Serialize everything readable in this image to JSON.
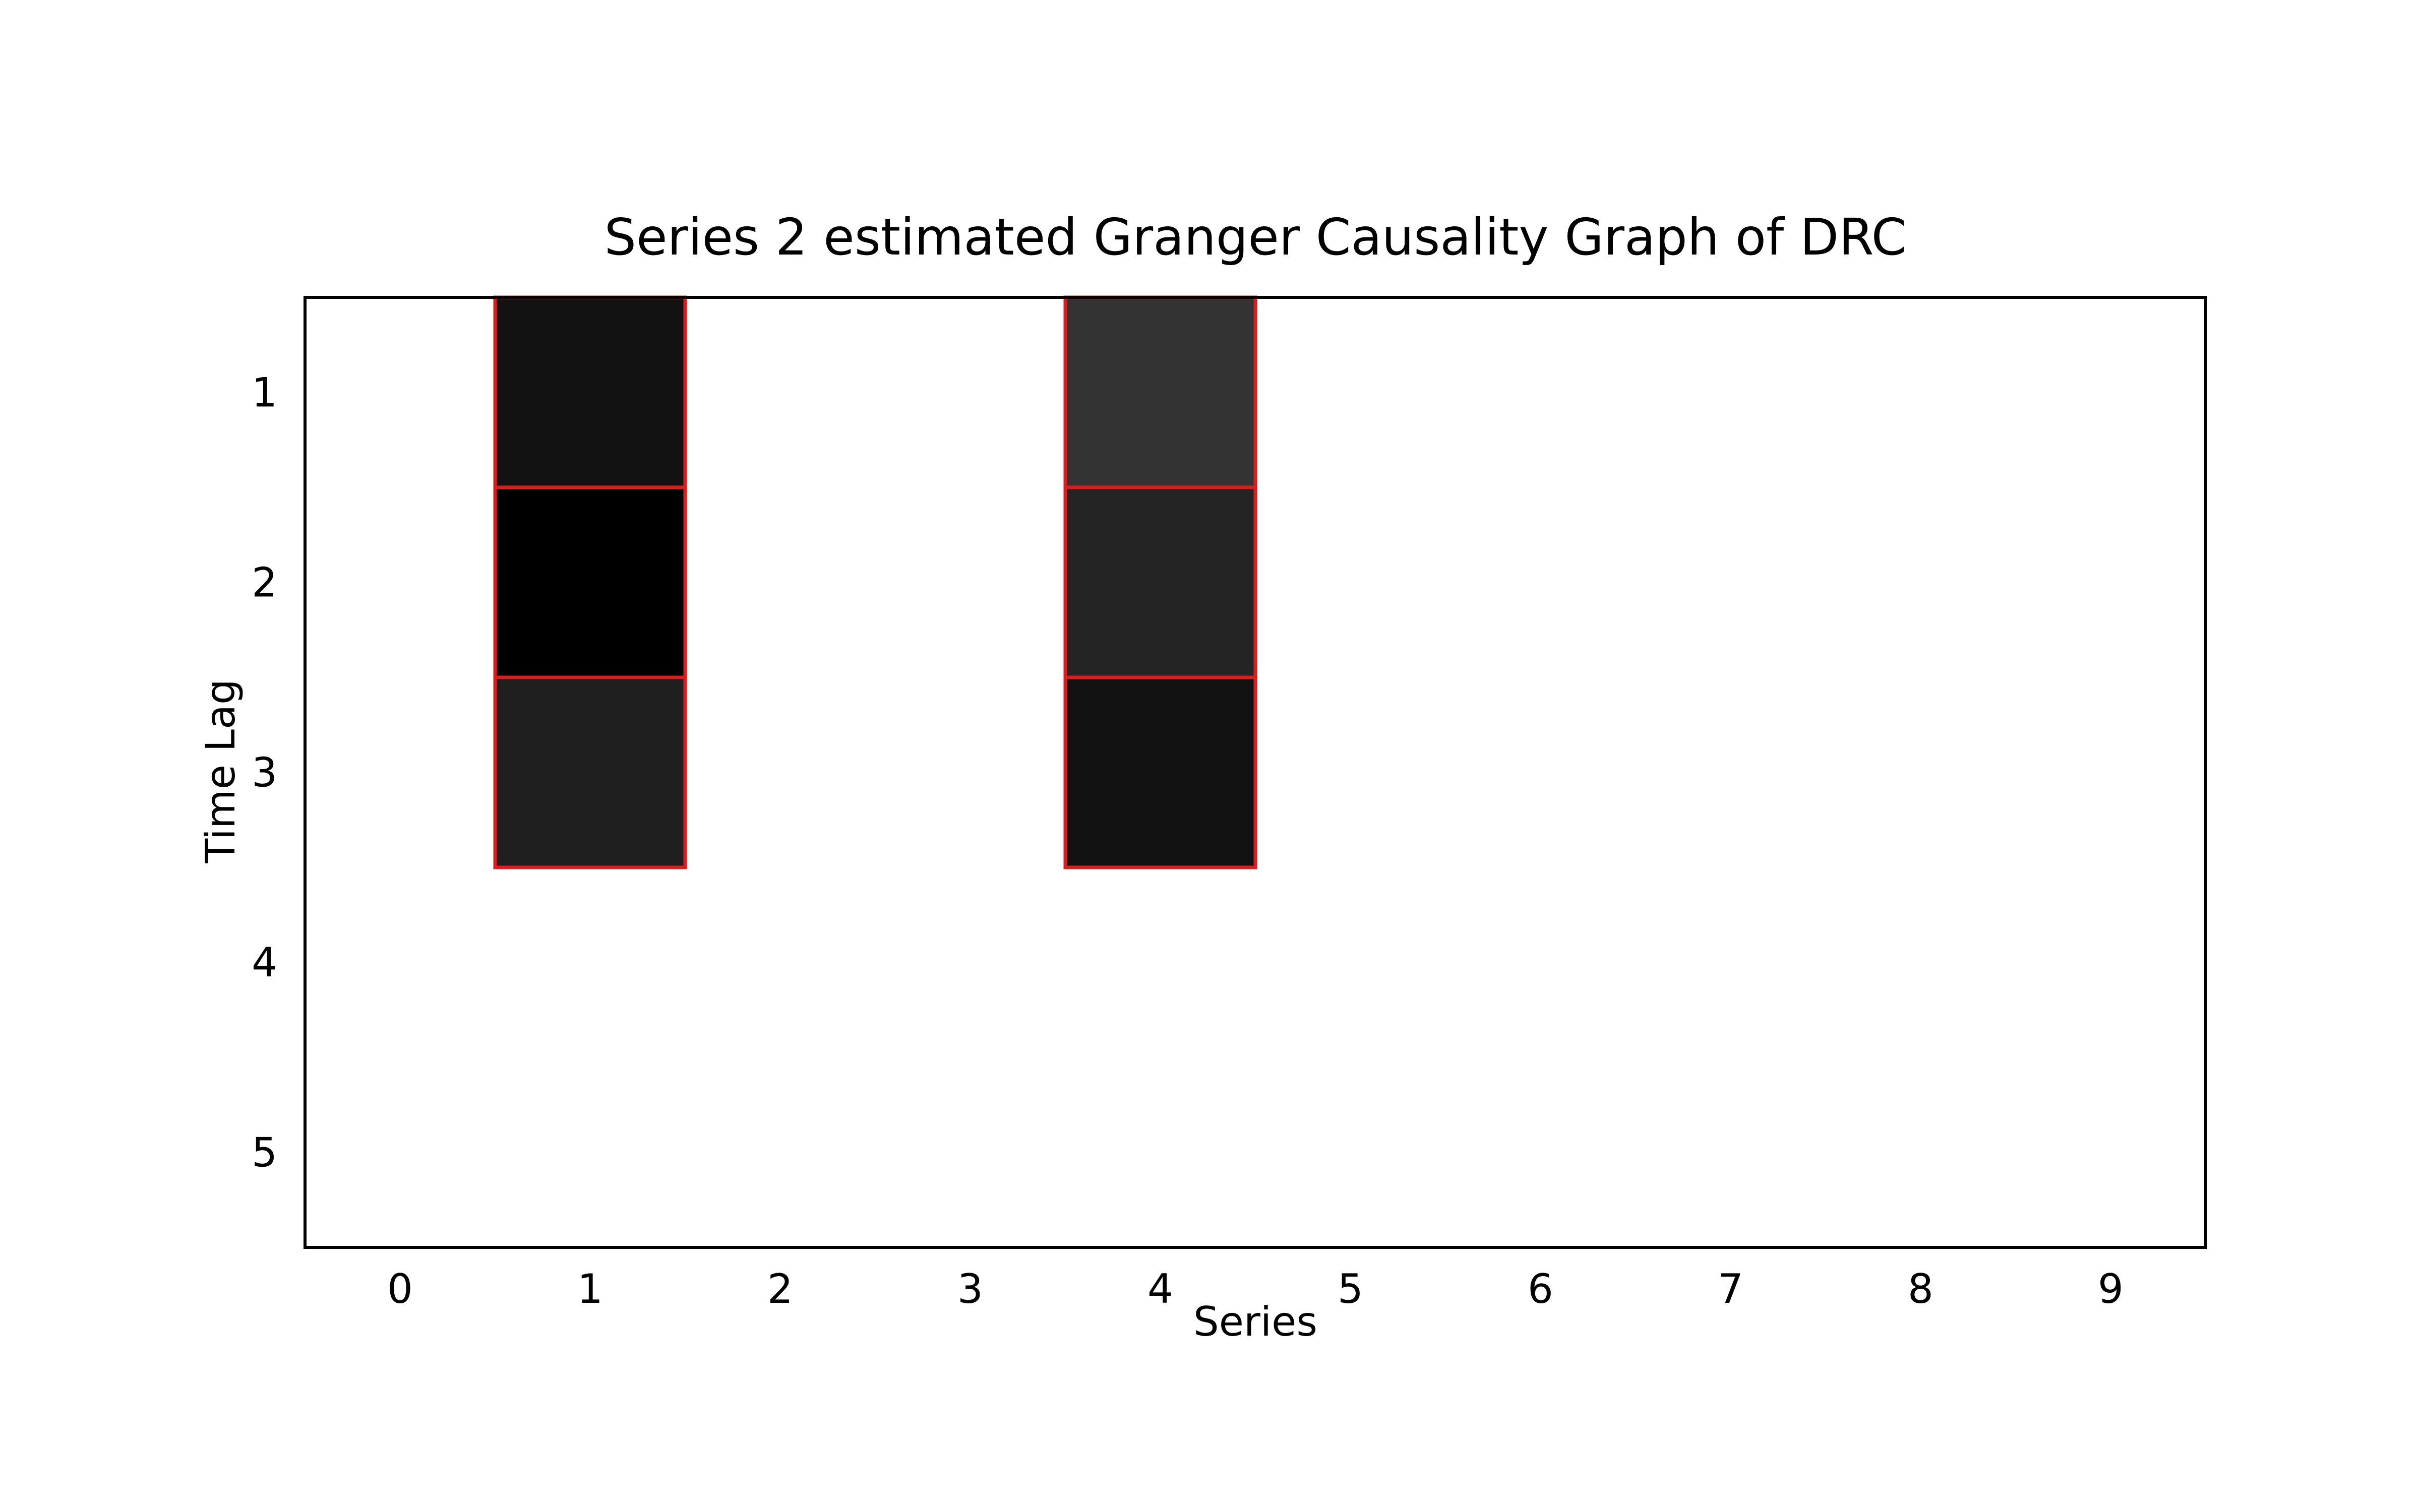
{
  "chart_data": {
    "type": "heatmap",
    "title": "Series 2 estimated Granger Causality Graph of DRC",
    "xlabel": "Series",
    "ylabel": "Time Lag",
    "x_categories": [
      "0",
      "1",
      "2",
      "3",
      "4",
      "5",
      "6",
      "7",
      "8",
      "9"
    ],
    "y_categories": [
      "1",
      "2",
      "3",
      "4",
      "5"
    ],
    "cells": [
      {
        "series": 1,
        "lag": 1,
        "gray": 0.07
      },
      {
        "series": 1,
        "lag": 2,
        "gray": 0.0
      },
      {
        "series": 1,
        "lag": 3,
        "gray": 0.12
      },
      {
        "series": 4,
        "lag": 1,
        "gray": 0.2
      },
      {
        "series": 4,
        "lag": 2,
        "gray": 0.14
      },
      {
        "series": 4,
        "lag": 3,
        "gray": 0.07
      }
    ],
    "cell_value_scale": "grayscale: 0 = black, 1 = white",
    "highlight_color": "#e31a1c",
    "background_color": "#ffffff",
    "grid": false
  }
}
